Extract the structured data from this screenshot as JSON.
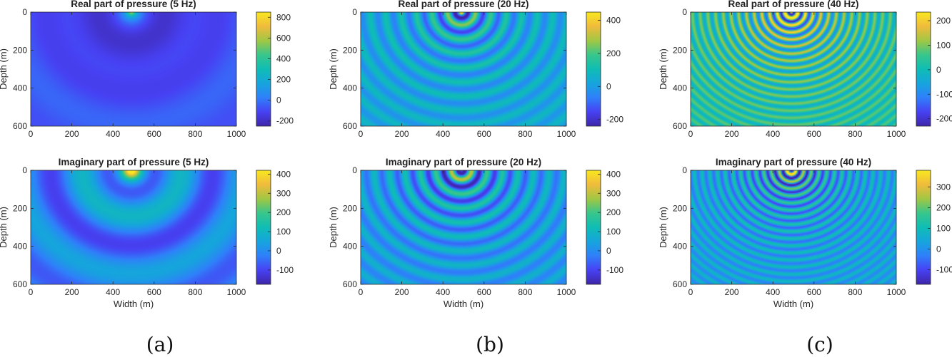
{
  "chart_data": [
    {
      "type": "heatmap",
      "title": "Real part of pressure  (5 Hz)",
      "xlabel": "",
      "ylabel": "Depth (m)",
      "x_ticks": [
        "0",
        "200",
        "400",
        "600",
        "800",
        "1000"
      ],
      "y_ticks": [
        "0",
        "200",
        "400",
        "600"
      ],
      "xlim": [
        0,
        1000
      ],
      "ylim": [
        0,
        600
      ],
      "frequency_hz": 5,
      "part": "real",
      "source": [
        490,
        0
      ],
      "clim": [
        -250,
        850
      ],
      "colorbar_ticks": [
        -200,
        0,
        200,
        400,
        600,
        800
      ],
      "colorbar_labels": [
        "-200",
        "0",
        "200",
        "400",
        "600",
        "800"
      ]
    },
    {
      "type": "heatmap",
      "title": "Real part of pressure  (20 Hz)",
      "xlabel": "",
      "ylabel": "Depth (m)",
      "x_ticks": [
        "0",
        "200",
        "400",
        "600",
        "800",
        "1000"
      ],
      "y_ticks": [
        "0",
        "200",
        "400",
        "600"
      ],
      "xlim": [
        0,
        1000
      ],
      "ylim": [
        0,
        600
      ],
      "frequency_hz": 20,
      "part": "real",
      "source": [
        490,
        0
      ],
      "clim": [
        -240,
        450
      ],
      "colorbar_ticks": [
        -200,
        0,
        200,
        400
      ],
      "colorbar_labels": [
        "-200",
        "0",
        "200",
        "400"
      ]
    },
    {
      "type": "heatmap",
      "title": "Real part of pressure  (40 Hz)",
      "xlabel": "",
      "ylabel": "Depth (m)",
      "x_ticks": [
        "0",
        "200",
        "400",
        "600",
        "800",
        "1000"
      ],
      "y_ticks": [
        "0",
        "200",
        "400",
        "600"
      ],
      "xlim": [
        0,
        1000
      ],
      "ylim": [
        0,
        600
      ],
      "frequency_hz": 40,
      "part": "real",
      "source": [
        490,
        0
      ],
      "clim": [
        -230,
        235
      ],
      "colorbar_ticks": [
        -200,
        -100,
        0,
        100,
        200
      ],
      "colorbar_labels": [
        "-200",
        "-100",
        "0",
        "100",
        "200"
      ]
    },
    {
      "type": "heatmap",
      "title": "Imaginary part of pressure  (5 Hz)",
      "xlabel": "Width (m)",
      "ylabel": "Depth (m)",
      "x_ticks": [
        "0",
        "200",
        "400",
        "600",
        "800",
        "1000"
      ],
      "y_ticks": [
        "0",
        "200",
        "400",
        "600"
      ],
      "xlim": [
        0,
        1000
      ],
      "ylim": [
        0,
        600
      ],
      "frequency_hz": 5,
      "part": "imaginary",
      "source": [
        490,
        0
      ],
      "clim": [
        -175,
        420
      ],
      "colorbar_ticks": [
        -100,
        0,
        100,
        200,
        300,
        400
      ],
      "colorbar_labels": [
        "-100",
        "0",
        "100",
        "200",
        "300",
        "400"
      ]
    },
    {
      "type": "heatmap",
      "title": "Imaginary part of pressure  (20 Hz)",
      "xlabel": "Width (m)",
      "ylabel": "Depth (m)",
      "x_ticks": [
        "0",
        "200",
        "400",
        "600",
        "800",
        "1000"
      ],
      "y_ticks": [
        "0",
        "200",
        "400",
        "600"
      ],
      "xlim": [
        0,
        1000
      ],
      "ylim": [
        0,
        600
      ],
      "frequency_hz": 20,
      "part": "imaginary",
      "source": [
        490,
        0
      ],
      "clim": [
        -175,
        420
      ],
      "colorbar_ticks": [
        -100,
        0,
        100,
        200,
        300,
        400
      ],
      "colorbar_labels": [
        "-100",
        "0",
        "100",
        "200",
        "300",
        "400"
      ]
    },
    {
      "type": "heatmap",
      "title": "Imaginary part of pressure  (40 Hz)",
      "xlabel": "Width (m)",
      "ylabel": "Depth (m)",
      "x_ticks": [
        "0",
        "200",
        "400",
        "600",
        "800",
        "1000"
      ],
      "y_ticks": [
        "0",
        "200",
        "400",
        "600"
      ],
      "xlim": [
        0,
        1000
      ],
      "ylim": [
        0,
        600
      ],
      "frequency_hz": 40,
      "part": "imaginary",
      "source": [
        490,
        0
      ],
      "clim": [
        -170,
        380
      ],
      "colorbar_ticks": [
        -100,
        0,
        100,
        200,
        300
      ],
      "colorbar_labels": [
        "-100",
        "0",
        "100",
        "200",
        "300"
      ]
    }
  ],
  "captions": [
    "(a)",
    "(b)",
    "(c)"
  ],
  "colormap": [
    "#3e26a8",
    "#4741f3",
    "#2f80fa",
    "#16a5dd",
    "#0fbdb4",
    "#38c68b",
    "#a1c743",
    "#f0bb3c",
    "#f9e81f"
  ]
}
